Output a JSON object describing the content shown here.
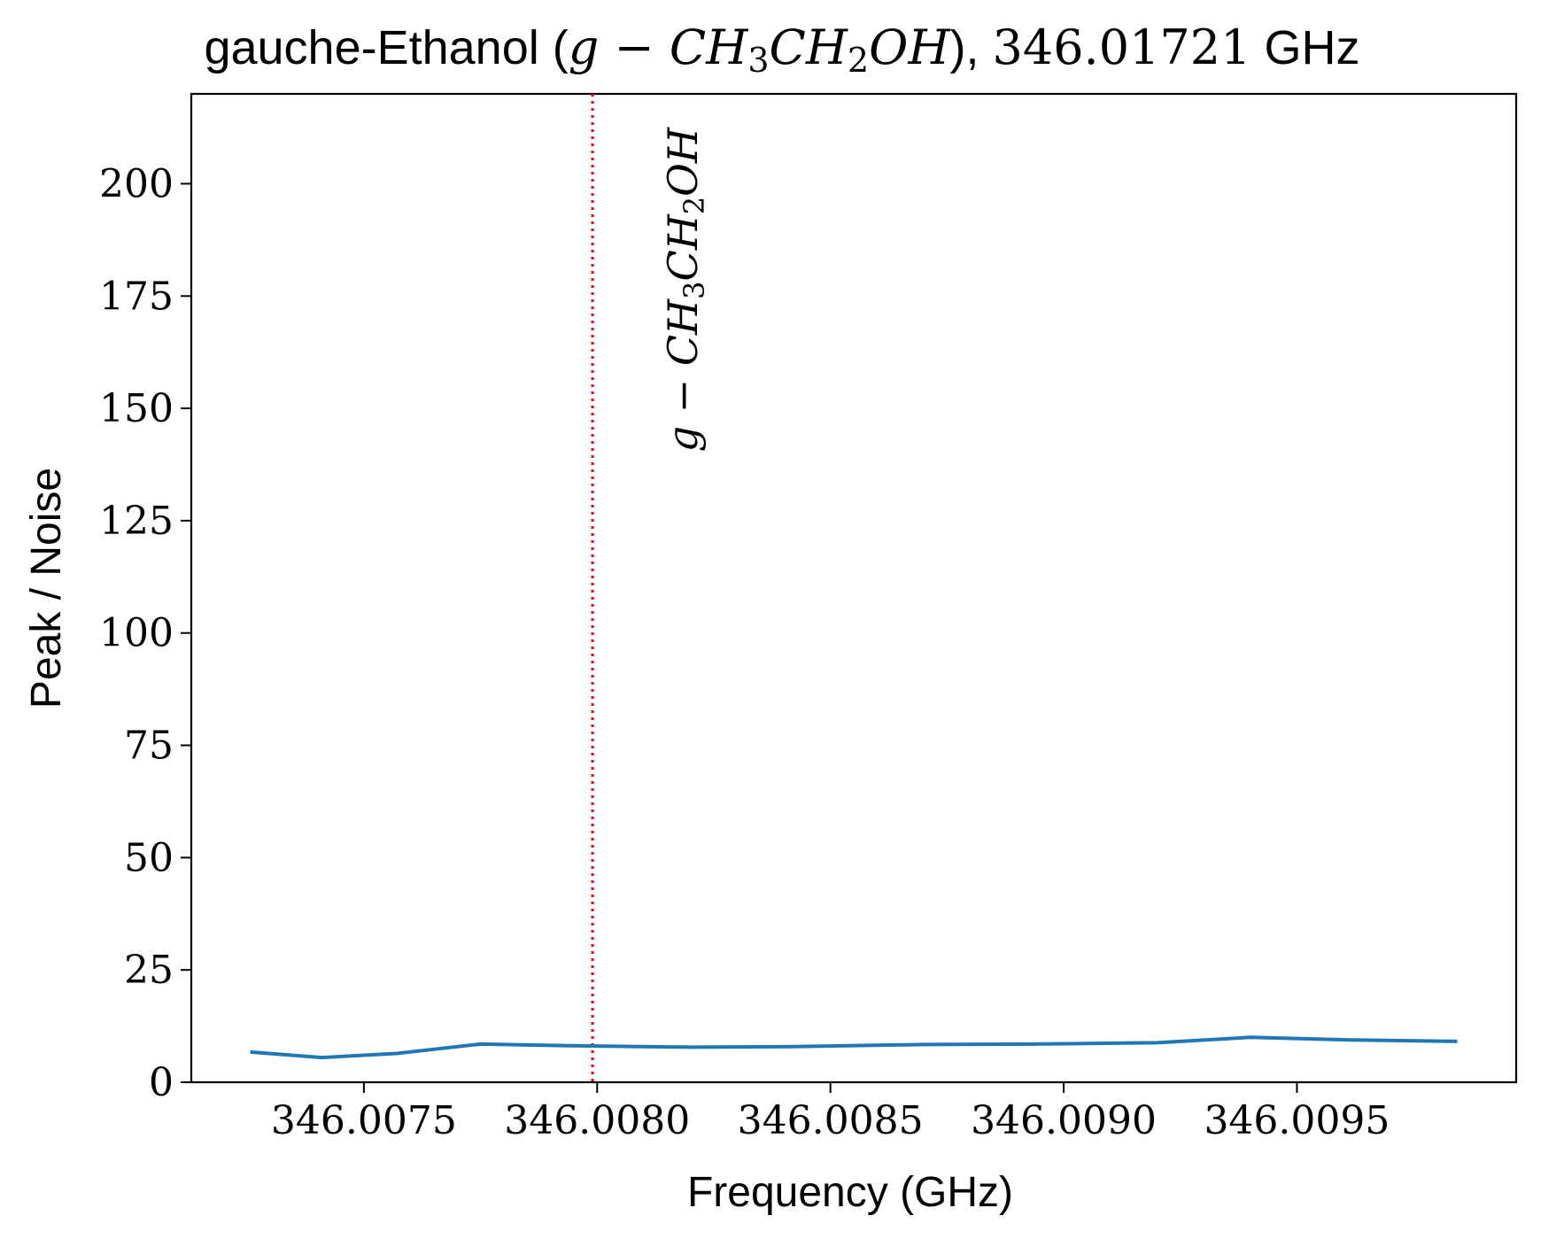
{
  "chart_data": {
    "type": "line",
    "title": {
      "prefix": "gauche-Ethanol (",
      "formula_g": "g",
      "formula_minus": " − ",
      "formula_a": "CH",
      "formula_sub1": "3",
      "formula_b": "CH",
      "formula_sub2": "2",
      "formula_c": "OH",
      "suffix": "), ",
      "freq": "346.01721",
      "unit": " GHz"
    },
    "xlabel": "Frequency (GHz)",
    "ylabel": "Peak / Noise",
    "xlim": [
      346.00713,
      346.00997
    ],
    "ylim": [
      0,
      220
    ],
    "xticks": [
      346.0075,
      346.008,
      346.0085,
      346.009,
      346.0095
    ],
    "xtick_labels": [
      "346.0075",
      "346.0080",
      "346.0085",
      "346.0090",
      "346.0095"
    ],
    "yticks": [
      0,
      25,
      50,
      75,
      100,
      125,
      150,
      175,
      200
    ],
    "ytick_labels": [
      "0",
      "25",
      "50",
      "75",
      "100",
      "125",
      "150",
      "175",
      "200"
    ],
    "grid": false,
    "series": [
      {
        "color": "#1f77b4",
        "x": [
          346.00726,
          346.00741,
          346.00757,
          346.00775,
          346.0079,
          346.0082,
          346.0084,
          346.0087,
          346.00894,
          346.0092,
          346.0094,
          346.00962,
          346.00984
        ],
        "y": [
          6.7,
          5.5,
          6.4,
          8.5,
          8.2,
          7.8,
          7.9,
          8.4,
          8.5,
          8.8,
          10.0,
          9.4,
          9.1
        ]
      }
    ],
    "vline": {
      "x": 346.00799,
      "color": "#ff0000",
      "style": "dotted",
      "label": {
        "g": "g",
        "minus": " − ",
        "a": "CH",
        "sub1": "3",
        "b": "CH",
        "sub2": "2",
        "c": "OH"
      }
    }
  }
}
